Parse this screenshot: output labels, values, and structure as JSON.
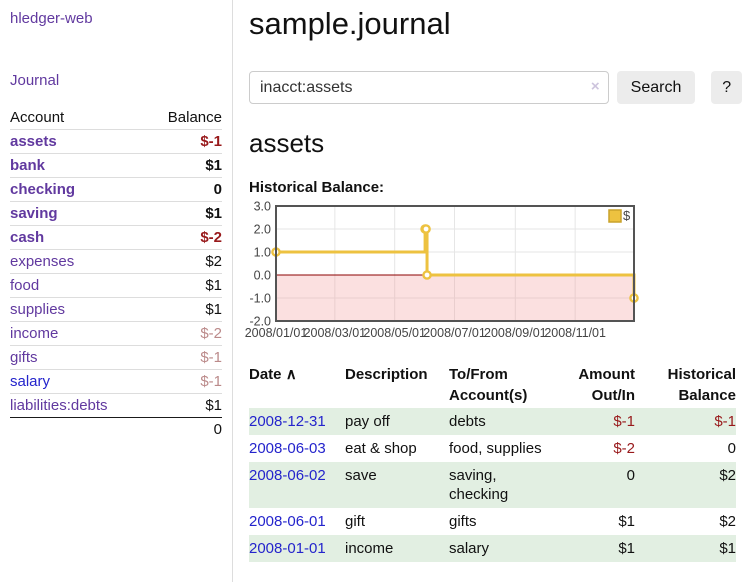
{
  "colors": {
    "link_purple": "#61399f",
    "link_blue": "#2424cc",
    "negative_strong": "#98191b",
    "negative_soft": "#bb8a8a",
    "row_stripe_green": "#e2efe2",
    "chart_line_yellow": "#edc240",
    "chart_negative_pink": "#fbdcdc",
    "chart_zero_line_red": "#8b0000",
    "button_gray": "#ececec"
  },
  "sidebar": {
    "brand": "hledger-web",
    "nav_journal": "Journal",
    "accounts_table": {
      "headers": {
        "account": "Account",
        "balance": "Balance"
      },
      "rows": [
        {
          "name": "assets",
          "balance": "$-1",
          "level": 1,
          "bold": true,
          "amount_style": "neg-strong",
          "link_style": "purple"
        },
        {
          "name": "bank",
          "balance": "$1",
          "level": 2,
          "bold": true,
          "amount_style": "normal",
          "link_style": "purple"
        },
        {
          "name": "checking",
          "balance": "0",
          "level": 3,
          "bold": true,
          "amount_style": "normal",
          "link_style": "purple"
        },
        {
          "name": "saving",
          "balance": "$1",
          "level": 3,
          "bold": true,
          "amount_style": "normal",
          "link_style": "purple"
        },
        {
          "name": "cash",
          "balance": "$-2",
          "level": 2,
          "bold": true,
          "amount_style": "neg-strong",
          "link_style": "purple"
        },
        {
          "name": "expenses",
          "balance": "$2",
          "level": 1,
          "bold": false,
          "amount_style": "normal",
          "link_style": "purple"
        },
        {
          "name": "food",
          "balance": "$1",
          "level": 2,
          "bold": false,
          "amount_style": "normal",
          "link_style": "purple"
        },
        {
          "name": "supplies",
          "balance": "$1",
          "level": 2,
          "bold": false,
          "amount_style": "normal",
          "link_style": "purple"
        },
        {
          "name": "income",
          "balance": "$-2",
          "level": 1,
          "bold": false,
          "amount_style": "neg-soft",
          "link_style": "purple"
        },
        {
          "name": "gifts",
          "balance": "$-1",
          "level": 2,
          "bold": false,
          "amount_style": "neg-soft",
          "link_style": "purple"
        },
        {
          "name": "salary",
          "balance": "$-1",
          "level": 2,
          "bold": false,
          "amount_style": "neg-soft",
          "link_style": "blue"
        },
        {
          "name": "liabilities:debts",
          "balance": "$1",
          "level": 1,
          "bold": false,
          "amount_style": "normal",
          "link_style": "purple"
        }
      ],
      "total": "0"
    }
  },
  "main": {
    "title": "sample.journal",
    "search": {
      "value": "inacct:assets",
      "clear_icon": "×",
      "search_button": "Search",
      "help_button": "?"
    },
    "account_heading": "assets",
    "chart_title": "Historical Balance:"
  },
  "chart_data": {
    "type": "line",
    "step": true,
    "title": "Historical Balance",
    "series": [
      {
        "name": "$",
        "color": "#edc240",
        "points": [
          [
            "2008/01/01",
            1
          ],
          [
            "2008/06/01",
            2
          ],
          [
            "2008/06/02",
            2
          ],
          [
            "2008/06/03",
            0
          ],
          [
            "2008/12/31",
            -1
          ]
        ]
      }
    ],
    "xrange": [
      "2008/01/01",
      "2008/12/31"
    ],
    "ylim": [
      -2,
      3
    ],
    "ytick_labels": [
      "3.0",
      "2.0",
      "1.0",
      "0.0",
      "-1.0",
      "-2.0"
    ],
    "yticks": [
      3,
      2,
      1,
      0,
      -1,
      -2
    ],
    "xtick_labels": [
      "2008/01/01",
      "2008/03/01",
      "2008/05/01",
      "2008/07/01",
      "2008/09/01",
      "2008/11/01"
    ],
    "grid": true,
    "negative_region_below": 0,
    "legend": {
      "label": "$",
      "position": "top-right"
    }
  },
  "register": {
    "sort_icon": "∧",
    "columns": [
      {
        "line1": "Date",
        "line2": "",
        "align": "left",
        "sortable": true
      },
      {
        "line1": "Description",
        "line2": "",
        "align": "left"
      },
      {
        "line1": "To/From",
        "line2": "Account(s)",
        "align": "left"
      },
      {
        "line1": "Amount",
        "line2": "Out/In",
        "align": "right"
      },
      {
        "line1": "Historical",
        "line2": "Balance",
        "align": "right"
      }
    ],
    "rows": [
      {
        "date": "2008-12-31",
        "description": "pay off",
        "accounts": "debts",
        "amount": "$-1",
        "balance": "$-1",
        "amount_neg": true,
        "balance_neg": true
      },
      {
        "date": "2008-06-03",
        "description": "eat & shop",
        "accounts": "food, supplies",
        "amount": "$-2",
        "balance": "0",
        "amount_neg": true,
        "balance_neg": false
      },
      {
        "date": "2008-06-02",
        "description": "save",
        "accounts": "saving,\nchecking",
        "amount": "0",
        "balance": "$2",
        "amount_neg": false,
        "balance_neg": false
      },
      {
        "date": "2008-06-01",
        "description": "gift",
        "accounts": "gifts",
        "amount": "$1",
        "balance": "$2",
        "amount_neg": false,
        "balance_neg": false
      },
      {
        "date": "2008-01-01",
        "description": "income",
        "accounts": "salary",
        "amount": "$1",
        "balance": "$1",
        "amount_neg": false,
        "balance_neg": false
      }
    ]
  }
}
